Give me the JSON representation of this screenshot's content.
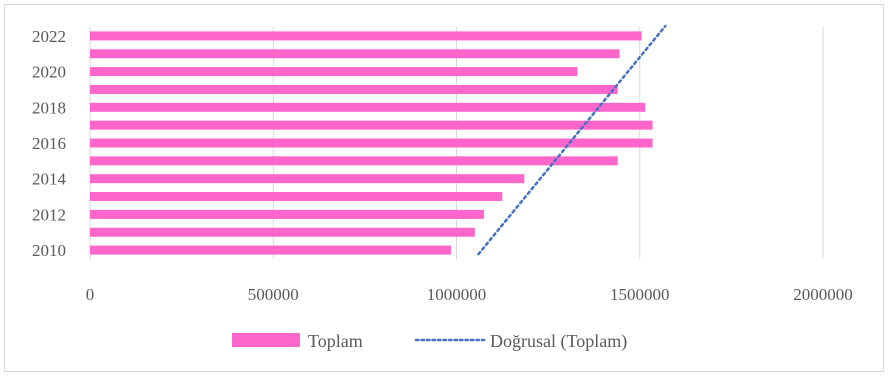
{
  "chart_data": {
    "type": "bar",
    "orientation": "horizontal",
    "categories": [
      "2010",
      "2011",
      "2012",
      "2013",
      "2014",
      "2015",
      "2016",
      "2017",
      "2018",
      "2019",
      "2020",
      "2021",
      "2022"
    ],
    "y_tick_labels": [
      "2010",
      "2012",
      "2014",
      "2016",
      "2018",
      "2020",
      "2022"
    ],
    "series": [
      {
        "name": "Toplam",
        "color": "#ff66cc",
        "values": [
          985000,
          1050000,
          1075000,
          1125000,
          1185000,
          1440000,
          1535000,
          1535000,
          1515000,
          1440000,
          1330000,
          1445000,
          1505000
        ]
      }
    ],
    "trendline": {
      "name": "Doğrusal (Toplam)",
      "type": "linear",
      "color": "#4472c4",
      "style": "dotted",
      "start": {
        "category": "2010",
        "value": 1060000
      },
      "end": {
        "category": "2022",
        "value": 1570000
      }
    },
    "x_ticks": [
      0,
      500000,
      1000000,
      1500000,
      2000000
    ],
    "x_tick_labels": [
      "0",
      "500000",
      "1000000",
      "1500000",
      "2000000"
    ],
    "xlim": [
      0,
      2000000
    ],
    "grid": "vertical",
    "legend": "bottom",
    "title": "",
    "xlabel": "",
    "ylabel": ""
  }
}
